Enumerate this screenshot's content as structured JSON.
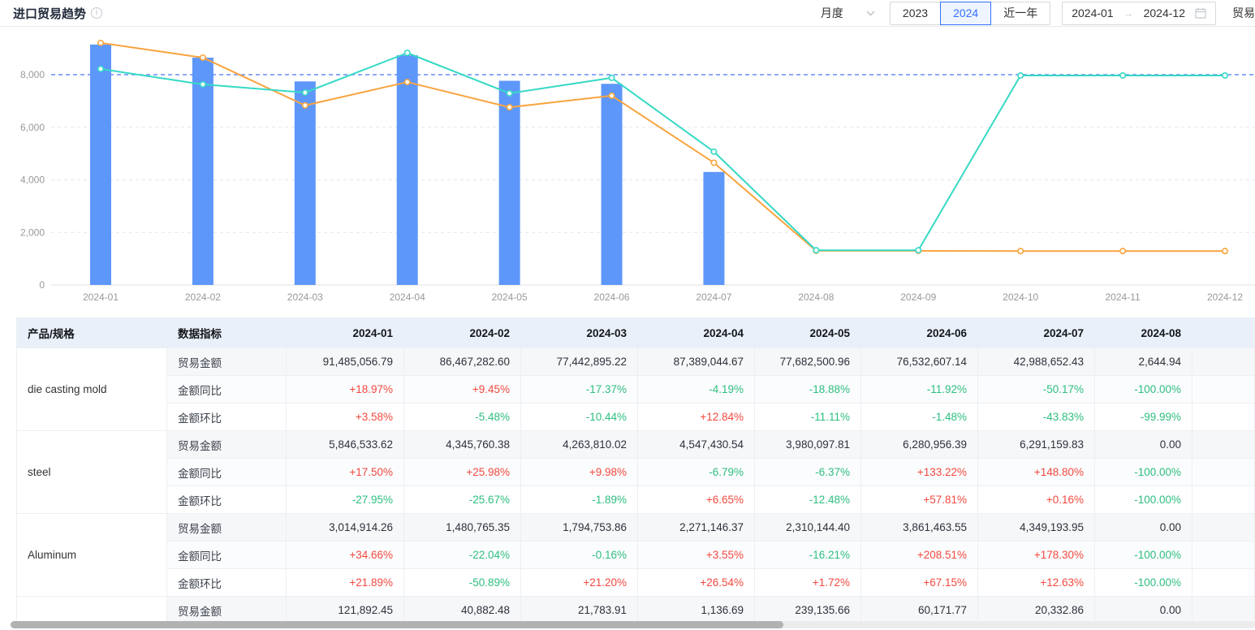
{
  "header": {
    "title": "进口贸易趋势",
    "period_select": {
      "value": "月度"
    },
    "year_buttons": [
      {
        "label": "2023",
        "active": false
      },
      {
        "label": "2024",
        "active": true
      },
      {
        "label": "近一年",
        "active": false
      }
    ],
    "date_range": {
      "start": "2024-01",
      "end": "2024-12"
    },
    "partial_label": "贸易"
  },
  "chart_data": {
    "type": "bar",
    "categories": [
      "2024-01",
      "2024-02",
      "2024-03",
      "2024-04",
      "2024-05",
      "2024-06",
      "2024-07",
      "2024-08",
      "2024-09",
      "2024-10",
      "2024-11",
      "2024-12"
    ],
    "ylim": [
      0,
      9600
    ],
    "yticks": [
      0,
      2000,
      4000,
      6000,
      8000
    ],
    "ytick_labels": [
      "0",
      "2,000",
      "4,000",
      "6,000",
      "8,000"
    ],
    "highlight_gridline": 8000,
    "grid": true,
    "legend_position": "none",
    "title": "",
    "xlabel": "",
    "ylabel": "",
    "series": [
      {
        "name": "trade-amount-bars",
        "type": "bar",
        "color": "#5e97fa",
        "values": [
          9148,
          8647,
          7744,
          8739,
          7768,
          7653,
          4299,
          0,
          0,
          0,
          0,
          0
        ]
      },
      {
        "name": "line-orange",
        "type": "line",
        "color": "#f9a43f",
        "values": [
          9210,
          8650,
          6830,
          7720,
          6760,
          7200,
          4650,
          1300,
          1300,
          1290,
          1290,
          1290
        ]
      },
      {
        "name": "line-teal",
        "type": "line",
        "color": "#36d9c5",
        "values": [
          8220,
          7630,
          7320,
          8830,
          7290,
          7880,
          5070,
          1320,
          1320,
          7970,
          7970,
          7970
        ]
      }
    ]
  },
  "table": {
    "col_headers": [
      "产品/规格",
      "数据指标",
      "2024-01",
      "2024-02",
      "2024-03",
      "2024-04",
      "2024-05",
      "2024-06",
      "2024-07",
      "2024-08"
    ],
    "groups": [
      {
        "product": "die casting mold",
        "rows": [
          {
            "metric": "贸易金额",
            "kind": "amount",
            "values": [
              "91,485,056.79",
              "86,467,282.60",
              "77,442,895.22",
              "87,389,044.67",
              "77,682,500.96",
              "76,532,607.14",
              "42,988,652.43",
              "2,644.94"
            ]
          },
          {
            "metric": "金额同比",
            "kind": "yoy",
            "values": [
              "+18.97%",
              "+9.45%",
              "-17.37%",
              "-4.19%",
              "-18.88%",
              "-11.92%",
              "-50.17%",
              "-100.00%"
            ]
          },
          {
            "metric": "金额环比",
            "kind": "mom",
            "values": [
              "+3.58%",
              "-5.48%",
              "-10.44%",
              "+12.84%",
              "-11.11%",
              "-1.48%",
              "-43.83%",
              "-99.99%"
            ]
          }
        ]
      },
      {
        "product": "steel",
        "rows": [
          {
            "metric": "贸易金额",
            "kind": "amount",
            "values": [
              "5,846,533.62",
              "4,345,760.38",
              "4,263,810.02",
              "4,547,430.54",
              "3,980,097.81",
              "6,280,956.39",
              "6,291,159.83",
              "0.00"
            ]
          },
          {
            "metric": "金额同比",
            "kind": "yoy",
            "values": [
              "+17.50%",
              "+25.98%",
              "+9.98%",
              "-6.79%",
              "-6.37%",
              "+133.22%",
              "+148.80%",
              "-100.00%"
            ]
          },
          {
            "metric": "金额环比",
            "kind": "mom",
            "values": [
              "-27.95%",
              "-25.67%",
              "-1.89%",
              "+6.65%",
              "-12.48%",
              "+57.81%",
              "+0.16%",
              "-100.00%"
            ]
          }
        ]
      },
      {
        "product": "Aluminum",
        "rows": [
          {
            "metric": "贸易金额",
            "kind": "amount",
            "values": [
              "3,014,914.26",
              "1,480,765.35",
              "1,794,753.86",
              "2,271,146.37",
              "2,310,144.40",
              "3,861,463.55",
              "4,349,193.95",
              "0.00"
            ]
          },
          {
            "metric": "金额同比",
            "kind": "yoy",
            "values": [
              "+34.66%",
              "-22.04%",
              "-0.16%",
              "+3.55%",
              "-16.21%",
              "+208.51%",
              "+178.30%",
              "-100.00%"
            ]
          },
          {
            "metric": "金额环比",
            "kind": "mom",
            "values": [
              "+21.89%",
              "-50.89%",
              "+21.20%",
              "+26.54%",
              "+1.72%",
              "+67.15%",
              "+12.63%",
              "-100.00%"
            ]
          }
        ]
      },
      {
        "product": "",
        "rows": [
          {
            "metric": "贸易金额",
            "kind": "amount",
            "values": [
              "121,892.45",
              "40,882.48",
              "21,783.91",
              "1,136.69",
              "239,135.66",
              "60,171.77",
              "20,332.86",
              "0.00"
            ]
          }
        ]
      }
    ]
  },
  "colors": {
    "bar": "#5e97fa",
    "line_orange": "#f9a43f",
    "line_teal": "#36d9c5",
    "highlight_line": "#678df7",
    "grid_line": "#e3e6ec",
    "axis_label": "#999999",
    "accent_blue": "#3370ff",
    "pct_up_red": "#f2493f",
    "pct_down_green": "#2dbe7f",
    "table_header_bg": "#e9f0fa"
  }
}
